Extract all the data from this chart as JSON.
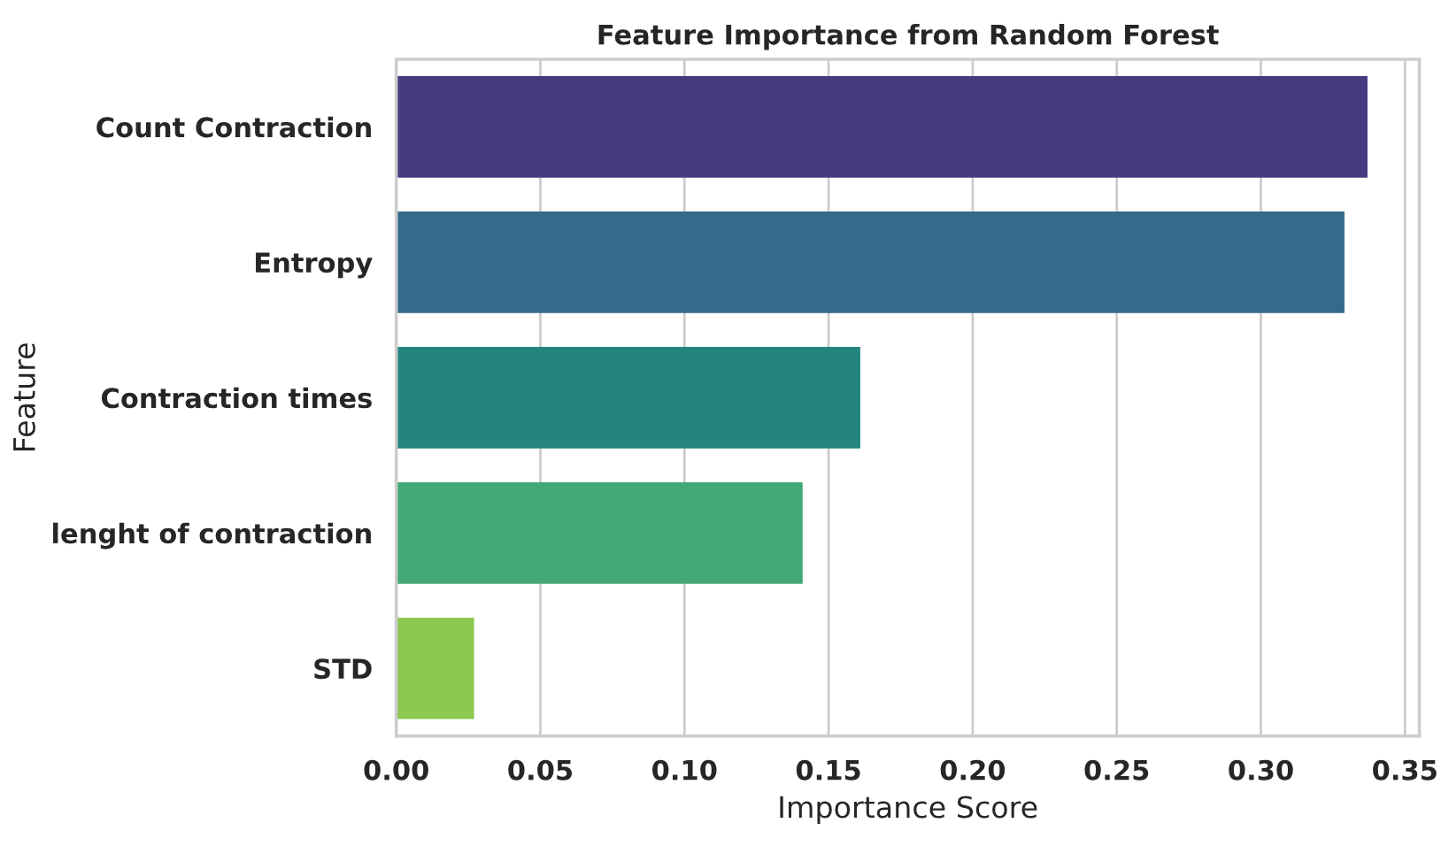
{
  "chart_data": {
    "type": "bar",
    "orientation": "horizontal",
    "title": "Feature Importance from Random Forest",
    "xlabel": "Importance Score",
    "ylabel": "Feature",
    "categories": [
      "Count Contraction",
      "Entropy",
      "Contraction times",
      "lenght of contraction",
      "STD"
    ],
    "values": [
      0.337,
      0.329,
      0.161,
      0.141,
      0.027
    ],
    "colors": [
      "#463a7f",
      "#366a8a",
      "#24857f",
      "#43a878",
      "#8dc84f"
    ],
    "xlim": [
      0,
      0.355
    ],
    "xticks": [
      {
        "value": 0,
        "label": "0.00"
      },
      {
        "value": 0.05,
        "label": "0.05"
      },
      {
        "value": 0.1,
        "label": "0.10"
      },
      {
        "value": 0.15,
        "label": "0.15"
      },
      {
        "value": 0.2,
        "label": "0.20"
      },
      {
        "value": 0.25,
        "label": "0.25"
      },
      {
        "value": 0.3,
        "label": "0.30"
      },
      {
        "value": 0.35,
        "label": "0.35"
      }
    ],
    "grid": "x"
  }
}
